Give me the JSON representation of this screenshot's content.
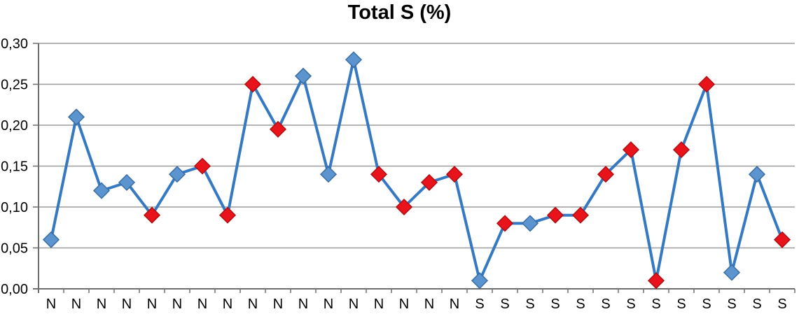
{
  "chart_data": {
    "type": "line",
    "title": "Total S (%)",
    "categories": [
      "N",
      "N",
      "N",
      "N",
      "N",
      "N",
      "N",
      "N",
      "N",
      "N",
      "N",
      "N",
      "N",
      "N",
      "N",
      "N",
      "N",
      "S",
      "S",
      "S",
      "S",
      "S",
      "S",
      "S",
      "S",
      "S",
      "S",
      "S",
      "S",
      "S"
    ],
    "values": [
      0.06,
      0.21,
      0.12,
      0.13,
      0.09,
      0.14,
      0.15,
      0.09,
      0.25,
      0.195,
      0.26,
      0.14,
      0.28,
      0.14,
      0.1,
      0.13,
      0.14,
      0.01,
      0.08,
      0.08,
      0.09,
      0.09,
      0.14,
      0.17,
      0.01,
      0.17,
      0.25,
      0.02,
      0.14,
      0.06
    ],
    "marker_colors": [
      "blue",
      "blue",
      "blue",
      "blue",
      "red",
      "blue",
      "red",
      "red",
      "red",
      "red",
      "blue",
      "blue",
      "blue",
      "red",
      "red",
      "red",
      "red",
      "blue",
      "red",
      "blue",
      "red",
      "red",
      "red",
      "red",
      "red",
      "red",
      "red",
      "blue",
      "blue",
      "red"
    ],
    "ylim": [
      0,
      0.3
    ],
    "ytick_interval": 0.05,
    "ytick_labels": [
      "0,00",
      "0,05",
      "0,10",
      "0,15",
      "0,20",
      "0,25",
      "0,30"
    ],
    "xlabel": "",
    "ylabel": "",
    "grid": true,
    "legend": "none",
    "colors": {
      "line": "#3579C2",
      "marker_blue_fill": "#5B94CE",
      "marker_blue_stroke": "#3A6EA5",
      "marker_red_fill": "#E8131B",
      "marker_red_stroke": "#B00E13",
      "gridline": "#9C9C9C",
      "axis": "#6E6E6E",
      "text": "#000000"
    }
  }
}
